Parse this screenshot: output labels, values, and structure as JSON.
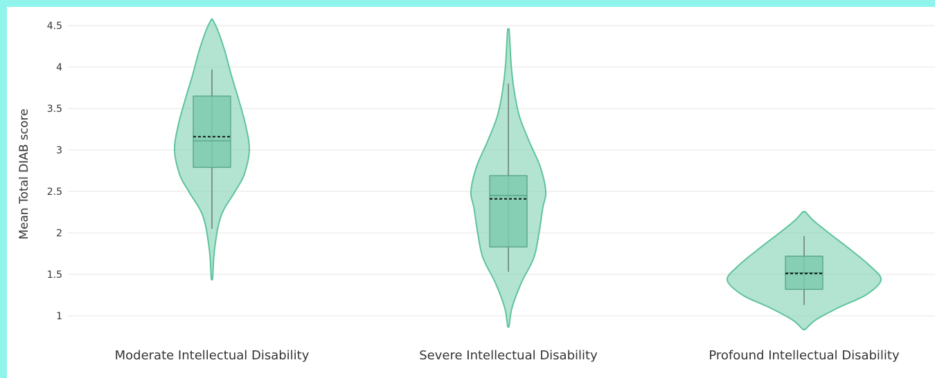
{
  "chart_data": {
    "type": "violin",
    "ylabel": "Mean Total DIAB score",
    "ylim": [
      0.85,
      4.6
    ],
    "y_ticks": [
      1,
      1.5,
      2,
      2.5,
      3,
      3.5,
      4,
      4.5
    ],
    "y_tick_labels": [
      "1",
      "1.5",
      "2",
      "2.5",
      "3",
      "3.5",
      "4",
      "4.5"
    ],
    "grid": true,
    "colors": {
      "fill": "#7fd2b3",
      "stroke": "#5fc39c",
      "box_fill": "#7fcbaf",
      "box_stroke": "#4e9e80",
      "mean_line": "#111111",
      "grid": "#e6e6e6",
      "background": "#ffffff",
      "page_border": "#8ff5ec"
    },
    "categories": [
      "Moderate Intellectual Disability",
      "Severe Intellectual Disability",
      "Profound Intellectual Disability"
    ],
    "violins": [
      {
        "category": "Moderate Intellectual Disability",
        "min": 1.46,
        "max": 4.57,
        "whisker_low": 2.05,
        "whisker_high": 3.97,
        "q1": 2.79,
        "median": 3.11,
        "q3": 3.65,
        "mean": 3.16,
        "density": [
          [
            1.46,
            0.02
          ],
          [
            1.8,
            0.07
          ],
          [
            2.2,
            0.24
          ],
          [
            2.5,
            0.62
          ],
          [
            2.7,
            0.86
          ],
          [
            3.0,
            1.0
          ],
          [
            3.3,
            0.9
          ],
          [
            3.6,
            0.72
          ],
          [
            3.9,
            0.52
          ],
          [
            4.2,
            0.34
          ],
          [
            4.45,
            0.15
          ],
          [
            4.57,
            0.02
          ]
        ]
      },
      {
        "category": "Severe Intellectual Disability",
        "min": 0.88,
        "max": 4.45,
        "whisker_low": 1.53,
        "whisker_high": 3.8,
        "q1": 1.83,
        "median": 2.45,
        "q3": 2.69,
        "mean": 2.41,
        "density": [
          [
            0.88,
            0.02
          ],
          [
            1.1,
            0.1
          ],
          [
            1.4,
            0.35
          ],
          [
            1.7,
            0.68
          ],
          [
            2.0,
            0.82
          ],
          [
            2.3,
            0.92
          ],
          [
            2.5,
            1.0
          ],
          [
            2.8,
            0.85
          ],
          [
            3.1,
            0.56
          ],
          [
            3.4,
            0.3
          ],
          [
            3.7,
            0.16
          ],
          [
            4.0,
            0.08
          ],
          [
            4.3,
            0.04
          ],
          [
            4.45,
            0.02
          ]
        ]
      },
      {
        "category": "Profound Intellectual Disability",
        "min": 0.84,
        "max": 2.25,
        "whisker_low": 1.13,
        "whisker_high": 1.96,
        "q1": 1.32,
        "median": 1.52,
        "q3": 1.72,
        "mean": 1.51,
        "density": [
          [
            0.84,
            0.02
          ],
          [
            0.95,
            0.15
          ],
          [
            1.1,
            0.45
          ],
          [
            1.25,
            0.8
          ],
          [
            1.43,
            1.0
          ],
          [
            1.6,
            0.86
          ],
          [
            1.8,
            0.6
          ],
          [
            2.0,
            0.32
          ],
          [
            2.15,
            0.12
          ],
          [
            2.25,
            0.02
          ]
        ]
      }
    ]
  }
}
